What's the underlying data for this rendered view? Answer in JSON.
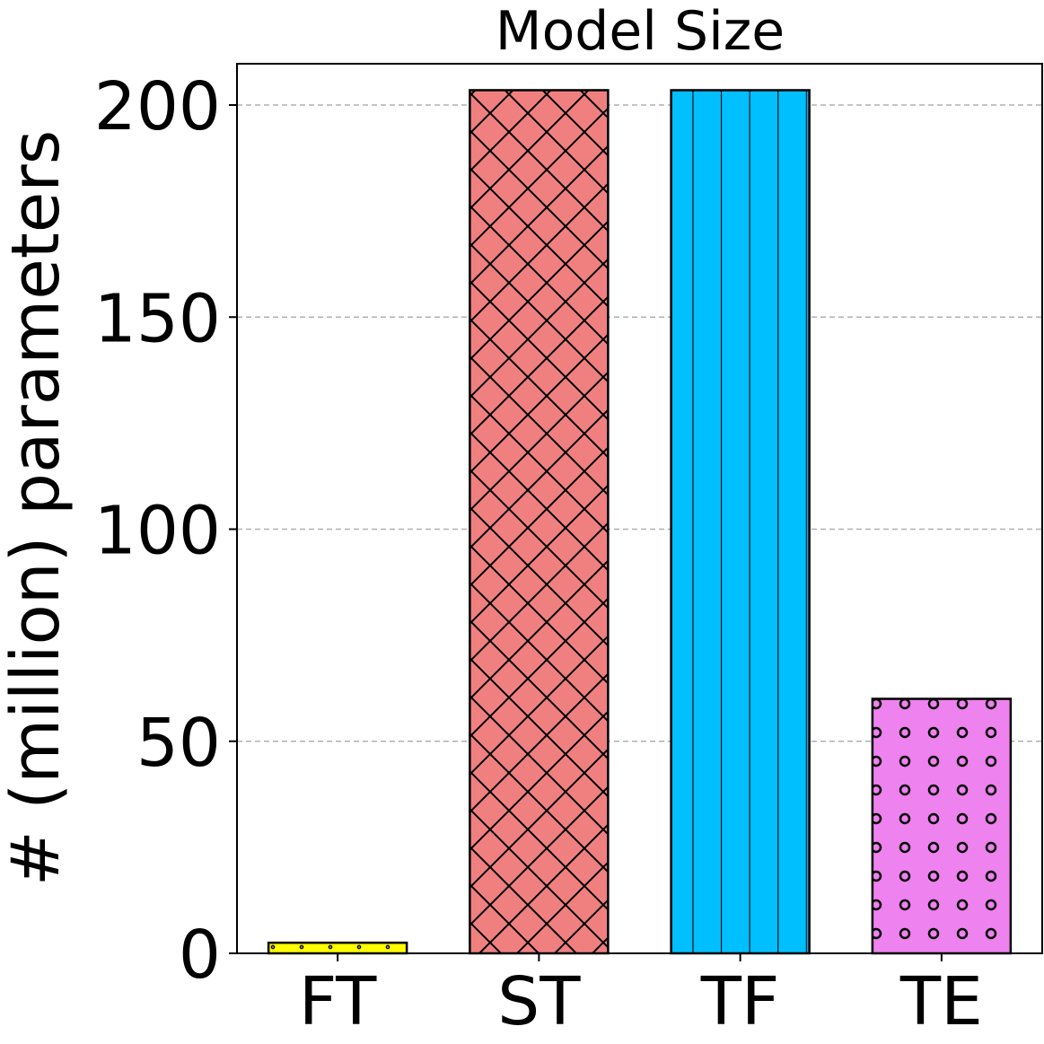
{
  "chart_data": {
    "type": "bar",
    "title": "Model Size",
    "xlabel": "",
    "ylabel": "# (million) parameters",
    "ylim": [
      0,
      210
    ],
    "yticks": [
      0,
      50,
      100,
      150,
      200
    ],
    "grid": "y-dashed",
    "categories": [
      "FT",
      "ST",
      "TF",
      "TE"
    ],
    "values": [
      2.5,
      203.5,
      203.5,
      60
    ],
    "colors": [
      "#ffff00",
      "#f08080",
      "#00bfff",
      "#ee82ee"
    ],
    "hatches": [
      "dots",
      "crosshatch",
      "vertical",
      "circles"
    ]
  }
}
